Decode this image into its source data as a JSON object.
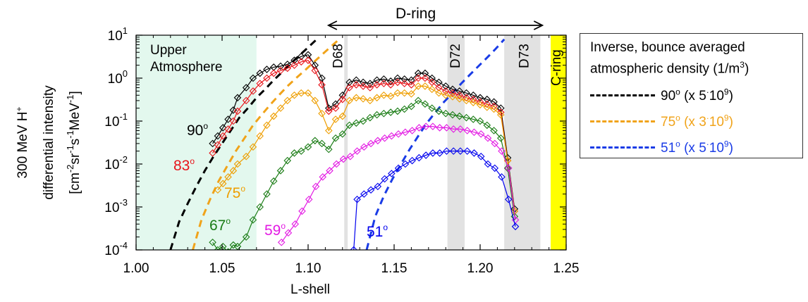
{
  "chart_data": {
    "type": "line",
    "y_scale": "log",
    "xlim": [
      1.0,
      1.25
    ],
    "ylim": [
      0.0001,
      10
    ],
    "xlabel": "L-shell",
    "ylabel_lines": [
      "300 MeV H+",
      "differential intensity",
      "[cm-2sr-1s-1MeV-1]"
    ],
    "x_ticks": [
      "1.00",
      "1.05",
      "1.10",
      "1.15",
      "1.20",
      "1.25"
    ],
    "y_ticks": [
      "10-4",
      "10-3",
      "10-2",
      "10-1",
      "100",
      "101"
    ],
    "regions": [
      {
        "label": "Upper Atmosphere",
        "x": [
          1.0,
          1.07
        ],
        "color": "#e3f8ee"
      },
      {
        "label": "",
        "x": [
          1.121,
          1.123
        ],
        "color": "#e2e2e2"
      },
      {
        "label": "D72",
        "x": [
          1.181,
          1.191
        ],
        "color": "#e2e2e2"
      },
      {
        "label": "D73",
        "x": [
          1.214,
          1.235
        ],
        "color": "#e2e2e2"
      },
      {
        "label": "C-ring",
        "x": [
          1.241,
          1.25
        ],
        "color": "#ffff00"
      }
    ],
    "d68_label": "D68",
    "d68_x": 1.122,
    "d_ring": {
      "label": "D-ring",
      "x": [
        1.111,
        1.237
      ]
    },
    "series": [
      {
        "name": "90°",
        "color": "#000000",
        "x": [
          1.0445,
          1.0475,
          1.0505,
          1.0535,
          1.0565,
          1.059,
          1.064,
          1.068,
          1.072,
          1.076,
          1.08,
          1.084,
          1.088,
          1.092,
          1.096,
          1.1,
          1.104,
          1.108,
          1.112,
          1.116,
          1.12,
          1.124,
          1.128,
          1.132,
          1.136,
          1.14,
          1.144,
          1.148,
          1.152,
          1.156,
          1.16,
          1.164,
          1.168,
          1.172,
          1.176,
          1.18,
          1.184,
          1.188,
          1.192,
          1.196,
          1.2,
          1.204,
          1.208,
          1.212,
          1.216,
          1.22
        ],
        "y": [
          0.03,
          0.045,
          0.07,
          0.11,
          0.18,
          0.35,
          0.6,
          1.0,
          1.3,
          1.6,
          1.8,
          1.9,
          2.1,
          2.6,
          3.2,
          3.5,
          2.0,
          1.0,
          0.2,
          0.25,
          0.4,
          0.8,
          0.9,
          0.8,
          0.75,
          0.9,
          0.95,
          0.85,
          1.0,
          0.95,
          0.9,
          1.3,
          1.3,
          1.0,
          0.8,
          0.65,
          0.55,
          0.5,
          0.45,
          0.4,
          0.35,
          0.32,
          0.28,
          0.2,
          0.014,
          0.0009
        ]
      },
      {
        "name": "83°",
        "color": "#e8151b",
        "x": [
          1.0445,
          1.0475,
          1.0505,
          1.0535,
          1.0565,
          1.059,
          1.064,
          1.068,
          1.072,
          1.076,
          1.08,
          1.084,
          1.088,
          1.092,
          1.096,
          1.1,
          1.104,
          1.108,
          1.112,
          1.116,
          1.12,
          1.124,
          1.128,
          1.132,
          1.136,
          1.14,
          1.144,
          1.148,
          1.152,
          1.156,
          1.16,
          1.164,
          1.168,
          1.172,
          1.176,
          1.18,
          1.184,
          1.188,
          1.192,
          1.196,
          1.2,
          1.204,
          1.208,
          1.212,
          1.216,
          1.22
        ],
        "y": [
          0.018,
          0.028,
          0.045,
          0.065,
          0.1,
          0.17,
          0.3,
          0.5,
          0.75,
          1.0,
          1.3,
          1.5,
          1.7,
          2.0,
          2.4,
          2.6,
          1.5,
          0.7,
          0.17,
          0.2,
          0.32,
          0.6,
          0.7,
          0.65,
          0.6,
          0.7,
          0.75,
          0.7,
          0.8,
          0.75,
          0.7,
          1.0,
          1.0,
          0.8,
          0.6,
          0.5,
          0.45,
          0.4,
          0.35,
          0.32,
          0.28,
          0.25,
          0.22,
          0.16,
          0.012,
          0.0008
        ]
      },
      {
        "name": "75°",
        "color": "#ee9e00",
        "x": [
          1.0475,
          1.0505,
          1.0535,
          1.0565,
          1.059,
          1.064,
          1.068,
          1.072,
          1.076,
          1.08,
          1.084,
          1.088,
          1.092,
          1.096,
          1.1,
          1.104,
          1.108,
          1.112,
          1.116,
          1.12,
          1.124,
          1.128,
          1.132,
          1.136,
          1.14,
          1.144,
          1.148,
          1.152,
          1.156,
          1.16,
          1.164,
          1.168,
          1.172,
          1.176,
          1.18,
          1.184,
          1.188,
          1.192,
          1.196,
          1.2,
          1.204,
          1.208,
          1.212,
          1.216,
          1.22
        ],
        "y": [
          0.0025,
          0.0035,
          0.005,
          0.007,
          0.01,
          0.015,
          0.025,
          0.045,
          0.08,
          0.13,
          0.2,
          0.3,
          0.4,
          0.45,
          0.45,
          0.3,
          0.15,
          0.06,
          0.11,
          0.13,
          0.3,
          0.35,
          0.33,
          0.3,
          0.35,
          0.4,
          0.38,
          0.45,
          0.45,
          0.43,
          0.65,
          0.65,
          0.55,
          0.45,
          0.4,
          0.37,
          0.33,
          0.3,
          0.27,
          0.24,
          0.21,
          0.19,
          0.14,
          0.012,
          0.0008
        ]
      },
      {
        "name": "67°",
        "color": "#1a7c15",
        "x": [
          1.0445,
          1.0475,
          1.0505,
          1.0535,
          1.0565,
          1.059,
          1.064,
          1.068,
          1.072,
          1.076,
          1.08,
          1.084,
          1.088,
          1.092,
          1.096,
          1.1,
          1.104,
          1.108,
          1.112,
          1.116,
          1.12,
          1.124,
          1.128,
          1.132,
          1.136,
          1.14,
          1.144,
          1.148,
          1.152,
          1.156,
          1.16,
          1.164,
          1.168,
          1.172,
          1.176,
          1.18,
          1.184,
          1.188,
          1.192,
          1.196,
          1.2,
          1.204,
          1.208,
          1.212,
          1.216,
          1.22
        ],
        "y": [
          0.00015,
          0.0001,
          0.00012,
          9e-05,
          0.00013,
          0.00012,
          0.0002,
          0.0005,
          0.001,
          0.002,
          0.004,
          0.007,
          0.012,
          0.018,
          0.02,
          0.025,
          0.035,
          0.03,
          0.022,
          0.04,
          0.05,
          0.08,
          0.09,
          0.1,
          0.12,
          0.14,
          0.15,
          0.16,
          0.17,
          0.19,
          0.22,
          0.3,
          0.25,
          0.2,
          0.17,
          0.15,
          0.14,
          0.13,
          0.12,
          0.11,
          0.1,
          0.08,
          0.06,
          0.04,
          0.008,
          0.0006
        ]
      },
      {
        "name": "59°",
        "color": "#e31ae3",
        "x": [
          1.0845,
          1.0885,
          1.0925,
          1.0965,
          1.1005,
          1.1045,
          1.1085,
          1.1125,
          1.1165,
          1.1205,
          1.1245,
          1.1285,
          1.1325,
          1.1365,
          1.1405,
          1.1445,
          1.1485,
          1.1525,
          1.1565,
          1.1605,
          1.1645,
          1.1685,
          1.1725,
          1.1765,
          1.1805,
          1.1845,
          1.1885,
          1.1925,
          1.1965,
          1.2005,
          1.2045,
          1.2085,
          1.2125,
          1.2165,
          1.2205
        ],
        "y": [
          0.00015,
          0.00025,
          0.0004,
          0.0008,
          0.0015,
          0.003,
          0.005,
          0.007,
          0.01,
          0.013,
          0.015,
          0.02,
          0.025,
          0.03,
          0.035,
          0.04,
          0.045,
          0.05,
          0.055,
          0.06,
          0.07,
          0.075,
          0.075,
          0.07,
          0.07,
          0.065,
          0.065,
          0.06,
          0.055,
          0.05,
          0.04,
          0.03,
          0.02,
          0.008,
          0.0005
        ]
      },
      {
        "name": "51°",
        "color": "#0000ee",
        "x": [
          1.1265,
          1.1285,
          1.1325,
          1.1365,
          1.1405,
          1.1445,
          1.1485,
          1.1525,
          1.1565,
          1.1605,
          1.1645,
          1.1685,
          1.1725,
          1.1765,
          1.1805,
          1.1845,
          1.1885,
          1.1925,
          1.1965,
          1.2005,
          1.2045,
          1.2085,
          1.2125,
          1.2165,
          1.2205
        ],
        "y": [
          0.0001,
          0.0015,
          0.002,
          0.0025,
          0.003,
          0.0045,
          0.006,
          0.008,
          0.01,
          0.012,
          0.014,
          0.016,
          0.018,
          0.018,
          0.02,
          0.02,
          0.02,
          0.02,
          0.018,
          0.015,
          0.01,
          0.008,
          0.005,
          0.0015,
          0.00035
        ]
      }
    ],
    "series_labels": [
      {
        "text": "90°",
        "color": "#000000"
      },
      {
        "text": "83°",
        "color": "#e8151b"
      },
      {
        "text": "75°",
        "color": "#ee9e00"
      },
      {
        "text": "67°",
        "color": "#1a7c15"
      },
      {
        "text": "59°",
        "color": "#e31ae3"
      },
      {
        "text": "51°",
        "color": "#0000ee"
      }
    ],
    "density_curves": [
      {
        "name": "90° (x 5·109)",
        "color": "#000000",
        "x": [
          1.02,
          1.025,
          1.03,
          1.035,
          1.04,
          1.045,
          1.05,
          1.055,
          1.06,
          1.065,
          1.07,
          1.075,
          1.08,
          1.085,
          1.09,
          1.095,
          1.1,
          1.105
        ],
        "y": [
          0.0001,
          0.00045,
          0.0012,
          0.003,
          0.007,
          0.015,
          0.03,
          0.06,
          0.12,
          0.2,
          0.35,
          0.55,
          0.9,
          1.4,
          2.2,
          3.4,
          5.2,
          8
        ]
      },
      {
        "name": "75° (x 3·109)",
        "color": "#f0a31a",
        "x": [
          1.033,
          1.038,
          1.043,
          1.048,
          1.053,
          1.058,
          1.063,
          1.068,
          1.073,
          1.078,
          1.083,
          1.088,
          1.093,
          1.098,
          1.103,
          1.108,
          1.113,
          1.118
        ],
        "y": [
          0.0001,
          0.0005,
          0.0015,
          0.004,
          0.009,
          0.02,
          0.04,
          0.08,
          0.14,
          0.24,
          0.4,
          0.65,
          1.0,
          1.5,
          2.3,
          3.5,
          5.3,
          8
        ]
      },
      {
        "name": "51° (x 5·109)",
        "color": "#1a3ce6",
        "x": [
          1.134,
          1.139,
          1.144,
          1.149,
          1.154,
          1.159,
          1.164,
          1.169,
          1.174,
          1.179,
          1.184,
          1.189,
          1.194,
          1.199,
          1.204,
          1.209,
          1.214
        ],
        "y": [
          0.0001,
          0.0006,
          0.0018,
          0.0045,
          0.01,
          0.022,
          0.045,
          0.09,
          0.16,
          0.28,
          0.45,
          0.75,
          1.2,
          1.9,
          3.0,
          4.8,
          8
        ]
      }
    ]
  },
  "legend": {
    "title_line1": "Inverse, bounce averaged",
    "title_line2": "atmospheric density (1/m",
    "title_unit_exp": "3",
    "title_close": ")",
    "rows": [
      {
        "label": "90",
        "deg": "o",
        "mult": " (x 5",
        "dot": "·",
        "base": "10",
        "exp": "9",
        "close": ")",
        "color": "#000000"
      },
      {
        "label": "75",
        "deg": "o",
        "mult": " (x 3",
        "dot": "·",
        "base": "10",
        "exp": "9",
        "close": ")",
        "color": "#f0a31a"
      },
      {
        "label": "51",
        "deg": "o",
        "mult": " (x 5",
        "dot": "·",
        "base": "10",
        "exp": "9",
        "close": ")",
        "color": "#1a3ce6"
      }
    ]
  }
}
